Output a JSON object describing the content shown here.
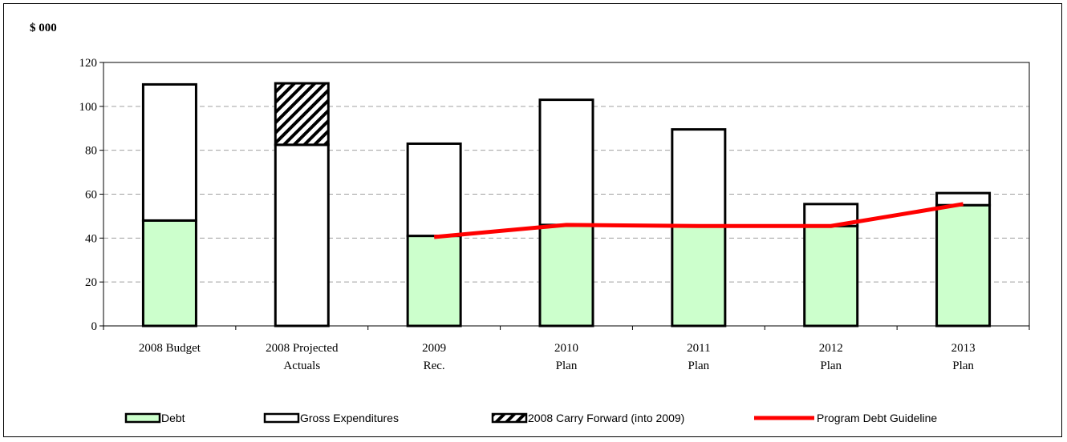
{
  "chart_data": {
    "type": "bar",
    "stacked": true,
    "unit_label": "$ 000",
    "categories": [
      [
        "2008 Budget"
      ],
      [
        "2008 Projected",
        "Actuals"
      ],
      [
        "2009",
        "Rec."
      ],
      [
        "2010",
        "Plan"
      ],
      [
        "2011",
        "Plan"
      ],
      [
        "2012",
        "Plan"
      ],
      [
        "2013",
        "Plan"
      ]
    ],
    "series": [
      {
        "name": "Debt",
        "kind": "bar",
        "fill": "#ccffcc",
        "values": [
          48,
          0,
          41,
          46,
          45.5,
          45.5,
          55
        ]
      },
      {
        "name": "Gross Expenditures",
        "kind": "bar",
        "fill": "#ffffff",
        "values": [
          62,
          82.5,
          42,
          57,
          44,
          10,
          5.5
        ]
      },
      {
        "name": "2008 Carry Forward (into 2009)",
        "kind": "bar",
        "fill": "hatch",
        "values": [
          0,
          28,
          0,
          0,
          0,
          0,
          0
        ]
      },
      {
        "name": "Program Debt Guideline",
        "kind": "line",
        "color": "#ff0000",
        "values": [
          null,
          null,
          40.5,
          46,
          45.5,
          45.5,
          55.5
        ]
      }
    ],
    "ylim": [
      0,
      120
    ],
    "yticks": [
      0,
      20,
      40,
      60,
      80,
      100,
      120
    ],
    "grid": true,
    "legend_position": "bottom"
  }
}
